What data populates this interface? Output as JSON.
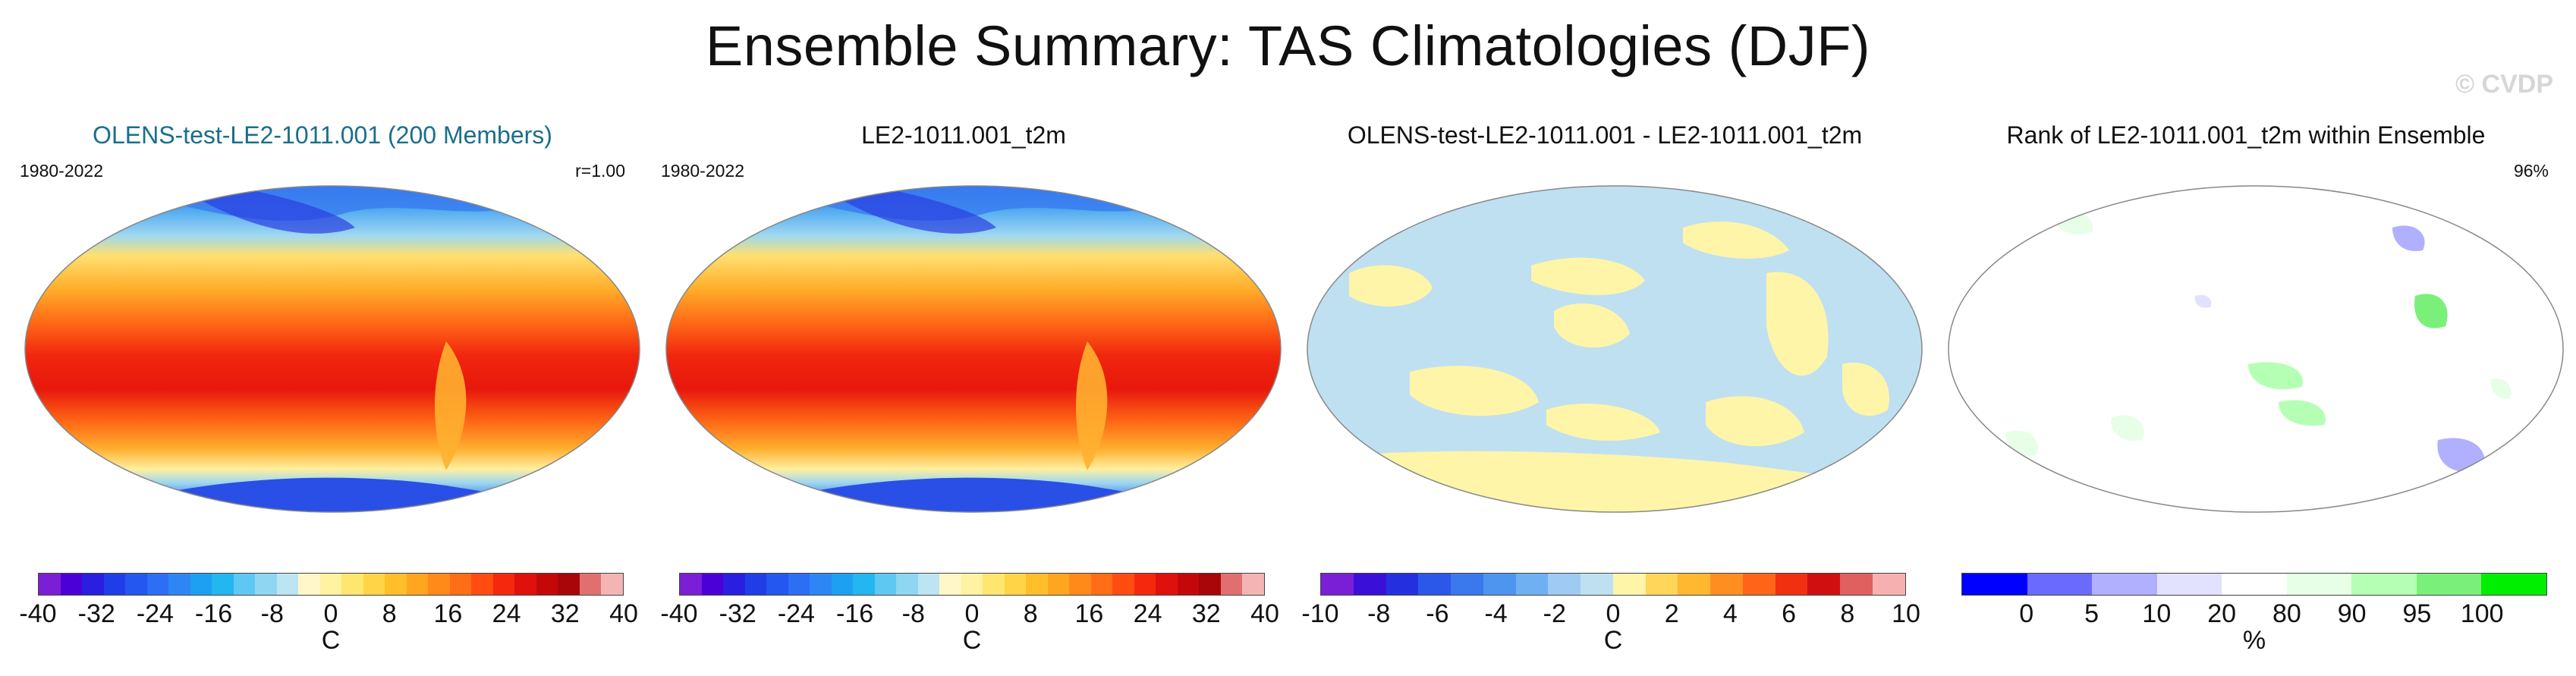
{
  "title": "Ensemble Summary: TAS Climatologies (DJF)",
  "watermark": "© CVDP",
  "panels": [
    {
      "title": "OLENS-test-LE2-1011.001 (200 Members)",
      "left_label": "1980-2022",
      "right_label": "r=1.00",
      "cbar_ticks": [
        "-40",
        "-32",
        "-24",
        "-16",
        "-8",
        "0",
        "8",
        "16",
        "24",
        "32",
        "40"
      ],
      "unit": "C"
    },
    {
      "title": "LE2-1011.001_t2m",
      "left_label": "1980-2022",
      "right_label": "",
      "cbar_ticks": [
        "-40",
        "-32",
        "-24",
        "-16",
        "-8",
        "0",
        "8",
        "16",
        "24",
        "32",
        "40"
      ],
      "unit": "C"
    },
    {
      "title": "OLENS-test-LE2-1011.001 - LE2-1011.001_t2m",
      "left_label": "",
      "right_label": "",
      "cbar_ticks": [
        "-10",
        "-8",
        "-6",
        "-4",
        "-2",
        "0",
        "2",
        "4",
        "6",
        "8",
        "10"
      ],
      "unit": "C"
    },
    {
      "title": "Rank of LE2-1011.001_t2m within Ensemble",
      "left_label": "",
      "right_label": "96%",
      "cbar_ticks": [
        "0",
        "5",
        "10",
        "20",
        "80",
        "90",
        "95",
        "100"
      ],
      "unit": "%"
    }
  ],
  "colors": {
    "temp_scale": [
      "#7a1fd6",
      "#4b00d8",
      "#2a1fe0",
      "#1f3ee8",
      "#2456f0",
      "#2d6ef5",
      "#2e86f5",
      "#1ea0f2",
      "#23b6f0",
      "#5ec8f2",
      "#8fd6f3",
      "#bde4f3",
      "#fff7c8",
      "#fff2a0",
      "#ffe66e",
      "#ffd447",
      "#ffbf2a",
      "#ffa51f",
      "#ff8a1a",
      "#ff6d16",
      "#ff4d12",
      "#f5280e",
      "#e0100c",
      "#c4080a",
      "#a80608",
      "#e07070",
      "#f4b4b4"
    ],
    "diff_scale": [
      "#7a1fd6",
      "#3a10d8",
      "#2430e0",
      "#2b58e8",
      "#3a78ee",
      "#4e95f0",
      "#6fb0f2",
      "#9fcaf3",
      "#bfe0f1",
      "#fff5a8",
      "#ffd65a",
      "#ffb830",
      "#ff8e20",
      "#ff6418",
      "#f03010",
      "#d01010",
      "#e06060",
      "#f7b0b0"
    ],
    "rank_scale": [
      "#0000ff",
      "#6a6aff",
      "#b0b0ff",
      "#e2e2ff",
      "#ffffff",
      "#e6ffe6",
      "#b4ffb4",
      "#7af07a",
      "#00ee00"
    ]
  }
}
